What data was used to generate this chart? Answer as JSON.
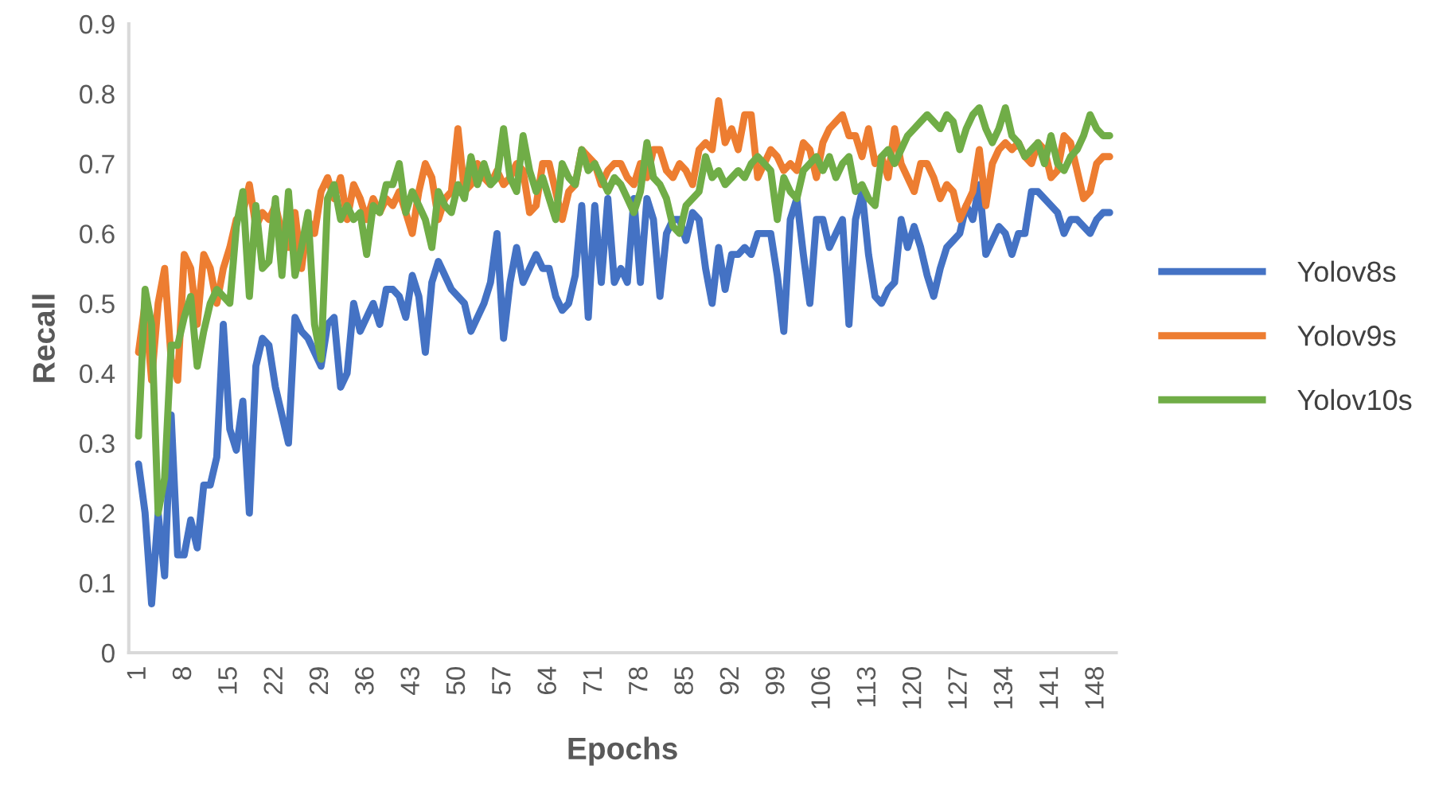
{
  "chart_data": {
    "type": "line",
    "xlabel": "Epochs",
    "ylabel": "Recall",
    "x": [
      1,
      2,
      3,
      4,
      5,
      6,
      7,
      8,
      9,
      10,
      11,
      12,
      13,
      14,
      15,
      16,
      17,
      18,
      19,
      20,
      21,
      22,
      23,
      24,
      25,
      26,
      27,
      28,
      29,
      30,
      31,
      32,
      33,
      34,
      35,
      36,
      37,
      38,
      39,
      40,
      41,
      42,
      43,
      44,
      45,
      46,
      47,
      48,
      49,
      50,
      51,
      52,
      53,
      54,
      55,
      56,
      57,
      58,
      59,
      60,
      61,
      62,
      63,
      64,
      65,
      66,
      67,
      68,
      69,
      70,
      71,
      72,
      73,
      74,
      75,
      76,
      77,
      78,
      79,
      80,
      81,
      82,
      83,
      84,
      85,
      86,
      87,
      88,
      89,
      90,
      91,
      92,
      93,
      94,
      95,
      96,
      97,
      98,
      99,
      100,
      101,
      102,
      103,
      104,
      105,
      106,
      107,
      108,
      109,
      110,
      111,
      112,
      113,
      114,
      115,
      116,
      117,
      118,
      119,
      120,
      121,
      122,
      123,
      124,
      125,
      126,
      127,
      128,
      129,
      130,
      131,
      132,
      133,
      134,
      135,
      136,
      137,
      138,
      139,
      140,
      141,
      142,
      143,
      144,
      145,
      146,
      147,
      148,
      149,
      150
    ],
    "xlim": [
      -0.5,
      151
    ],
    "xticks": [
      1,
      8,
      15,
      22,
      29,
      36,
      43,
      50,
      57,
      64,
      71,
      78,
      85,
      92,
      99,
      106,
      113,
      120,
      127,
      134,
      141,
      148
    ],
    "ylim": [
      0,
      0.9
    ],
    "yticks": [
      0,
      0.1,
      0.2,
      0.3,
      0.4,
      0.5,
      0.6,
      0.7,
      0.8,
      0.9
    ],
    "grid": false,
    "legend": "right",
    "marker": "none",
    "line_style": "solid",
    "series": [
      {
        "name": "Yolov8s",
        "color": "#4472c4",
        "values": [
          0.27,
          0.2,
          0.07,
          0.2,
          0.11,
          0.34,
          0.14,
          0.14,
          0.19,
          0.15,
          0.24,
          0.24,
          0.28,
          0.47,
          0.32,
          0.29,
          0.36,
          0.2,
          0.41,
          0.45,
          0.44,
          0.38,
          0.34,
          0.3,
          0.48,
          0.46,
          0.45,
          0.43,
          0.41,
          0.47,
          0.48,
          0.38,
          0.4,
          0.5,
          0.46,
          0.48,
          0.5,
          0.47,
          0.52,
          0.52,
          0.51,
          0.48,
          0.54,
          0.51,
          0.43,
          0.53,
          0.56,
          0.54,
          0.52,
          0.51,
          0.5,
          0.46,
          0.48,
          0.5,
          0.53,
          0.6,
          0.45,
          0.53,
          0.58,
          0.53,
          0.55,
          0.57,
          0.55,
          0.55,
          0.51,
          0.49,
          0.5,
          0.54,
          0.64,
          0.48,
          0.64,
          0.53,
          0.65,
          0.53,
          0.55,
          0.53,
          0.65,
          0.53,
          0.65,
          0.62,
          0.51,
          0.6,
          0.62,
          0.62,
          0.59,
          0.63,
          0.62,
          0.55,
          0.5,
          0.58,
          0.52,
          0.57,
          0.57,
          0.58,
          0.57,
          0.6,
          0.6,
          0.6,
          0.54,
          0.46,
          0.62,
          0.65,
          0.57,
          0.5,
          0.62,
          0.62,
          0.58,
          0.6,
          0.62,
          0.47,
          0.62,
          0.66,
          0.57,
          0.51,
          0.5,
          0.52,
          0.53,
          0.62,
          0.58,
          0.61,
          0.58,
          0.54,
          0.51,
          0.55,
          0.58,
          0.59,
          0.6,
          0.64,
          0.62,
          0.67,
          0.57,
          0.59,
          0.61,
          0.6,
          0.57,
          0.6,
          0.6,
          0.66,
          0.66,
          0.65,
          0.64,
          0.63,
          0.6,
          0.62,
          0.62,
          0.61,
          0.6,
          0.62,
          0.63,
          0.63
        ]
      },
      {
        "name": "Yolov9s",
        "color": "#ed7d31",
        "values": [
          0.43,
          0.5,
          0.39,
          0.5,
          0.55,
          0.42,
          0.39,
          0.57,
          0.55,
          0.47,
          0.57,
          0.55,
          0.5,
          0.55,
          0.58,
          0.62,
          0.63,
          0.67,
          0.61,
          0.63,
          0.62,
          0.64,
          0.6,
          0.58,
          0.63,
          0.55,
          0.62,
          0.6,
          0.66,
          0.68,
          0.65,
          0.68,
          0.62,
          0.67,
          0.65,
          0.62,
          0.65,
          0.63,
          0.65,
          0.64,
          0.66,
          0.63,
          0.6,
          0.66,
          0.7,
          0.68,
          0.62,
          0.65,
          0.66,
          0.75,
          0.66,
          0.67,
          0.7,
          0.68,
          0.67,
          0.69,
          0.67,
          0.68,
          0.7,
          0.69,
          0.63,
          0.64,
          0.7,
          0.7,
          0.66,
          0.62,
          0.66,
          0.67,
          0.72,
          0.71,
          0.7,
          0.67,
          0.69,
          0.7,
          0.7,
          0.68,
          0.67,
          0.7,
          0.68,
          0.72,
          0.72,
          0.69,
          0.68,
          0.7,
          0.69,
          0.67,
          0.72,
          0.73,
          0.72,
          0.79,
          0.73,
          0.75,
          0.72,
          0.77,
          0.77,
          0.68,
          0.7,
          0.72,
          0.71,
          0.69,
          0.7,
          0.69,
          0.73,
          0.72,
          0.68,
          0.73,
          0.75,
          0.76,
          0.77,
          0.74,
          0.74,
          0.71,
          0.75,
          0.7,
          0.71,
          0.68,
          0.75,
          0.7,
          0.68,
          0.66,
          0.7,
          0.7,
          0.68,
          0.65,
          0.67,
          0.66,
          0.62,
          0.64,
          0.66,
          0.72,
          0.64,
          0.7,
          0.72,
          0.73,
          0.72,
          0.73,
          0.71,
          0.7,
          0.73,
          0.72,
          0.68,
          0.69,
          0.74,
          0.73,
          0.69,
          0.65,
          0.66,
          0.7,
          0.71,
          0.71
        ]
      },
      {
        "name": "Yolov10s",
        "color": "#70ad47",
        "values": [
          0.31,
          0.52,
          0.47,
          0.2,
          0.25,
          0.44,
          0.44,
          0.48,
          0.51,
          0.41,
          0.46,
          0.5,
          0.52,
          0.51,
          0.5,
          0.61,
          0.66,
          0.51,
          0.64,
          0.55,
          0.56,
          0.65,
          0.54,
          0.66,
          0.54,
          0.58,
          0.63,
          0.47,
          0.42,
          0.65,
          0.67,
          0.62,
          0.64,
          0.62,
          0.63,
          0.57,
          0.64,
          0.63,
          0.67,
          0.67,
          0.7,
          0.63,
          0.66,
          0.64,
          0.62,
          0.58,
          0.66,
          0.64,
          0.63,
          0.67,
          0.65,
          0.71,
          0.67,
          0.7,
          0.67,
          0.68,
          0.75,
          0.68,
          0.66,
          0.74,
          0.69,
          0.66,
          0.68,
          0.65,
          0.62,
          0.7,
          0.68,
          0.67,
          0.72,
          0.69,
          0.7,
          0.68,
          0.66,
          0.68,
          0.67,
          0.65,
          0.63,
          0.66,
          0.73,
          0.68,
          0.67,
          0.65,
          0.61,
          0.6,
          0.64,
          0.65,
          0.66,
          0.71,
          0.68,
          0.69,
          0.67,
          0.68,
          0.69,
          0.68,
          0.7,
          0.71,
          0.7,
          0.69,
          0.62,
          0.68,
          0.66,
          0.65,
          0.69,
          0.7,
          0.71,
          0.69,
          0.71,
          0.68,
          0.7,
          0.71,
          0.66,
          0.67,
          0.65,
          0.64,
          0.71,
          0.72,
          0.7,
          0.72,
          0.74,
          0.75,
          0.76,
          0.77,
          0.76,
          0.75,
          0.77,
          0.76,
          0.72,
          0.75,
          0.77,
          0.78,
          0.75,
          0.73,
          0.75,
          0.78,
          0.74,
          0.73,
          0.71,
          0.72,
          0.73,
          0.7,
          0.74,
          0.7,
          0.69,
          0.71,
          0.72,
          0.74,
          0.77,
          0.75,
          0.74,
          0.74
        ]
      }
    ]
  }
}
